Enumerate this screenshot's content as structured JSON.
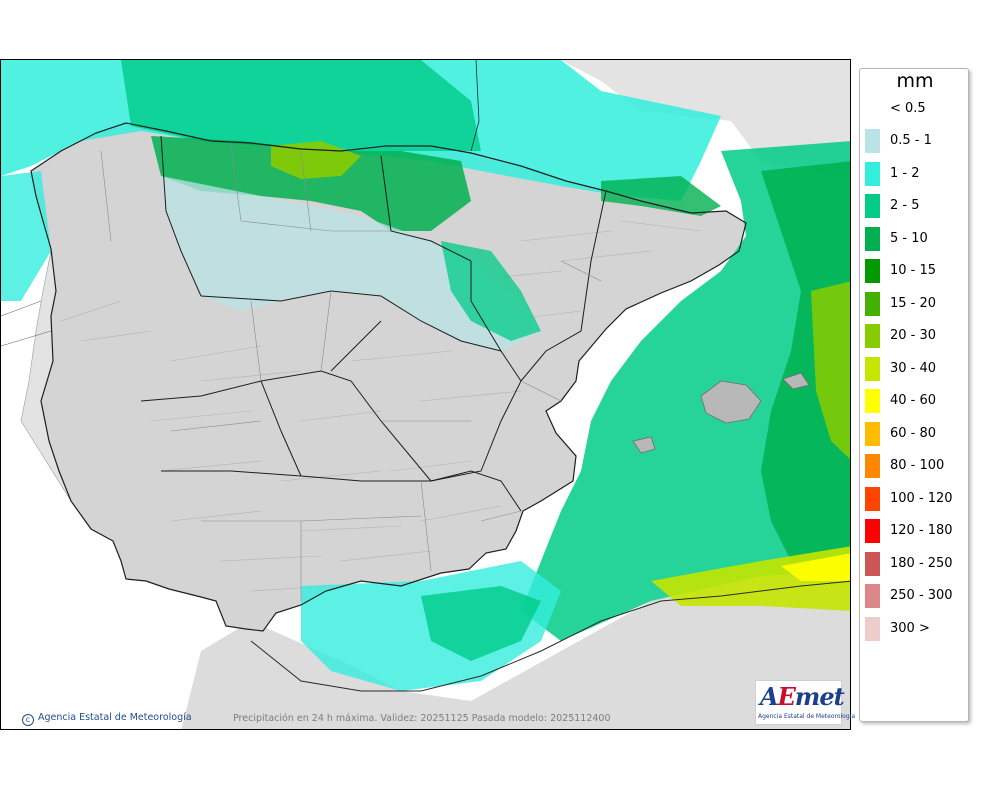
{
  "map": {
    "caption": "Precipitación en 24 h máxima. Validez: 20251125 Pasada modelo: 2025112400",
    "credit": "Agencia Estatal de Meteorología",
    "logo": {
      "wordmark_a": "A",
      "wordmark_e": "E",
      "wordmark_rest": "met",
      "subtitle": "Agencia Estatal de Meteorología"
    }
  },
  "legend": {
    "unit": "mm",
    "below_min": "< 0.5",
    "items": [
      {
        "label": "0.5 - 1",
        "color": "#b9e3e6"
      },
      {
        "label": "1 - 2",
        "color": "#33eedd"
      },
      {
        "label": "2 - 5",
        "color": "#00cc88"
      },
      {
        "label": "5 - 10",
        "color": "#00b050"
      },
      {
        "label": "10 - 15",
        "color": "#009900"
      },
      {
        "label": "15 - 20",
        "color": "#44b000"
      },
      {
        "label": "20 - 30",
        "color": "#88cc00"
      },
      {
        "label": "30 - 40",
        "color": "#c4e600"
      },
      {
        "label": "40 - 60",
        "color": "#ffff00"
      },
      {
        "label": "60 - 80",
        "color": "#ffbb00"
      },
      {
        "label": "80 - 100",
        "color": "#ff8800"
      },
      {
        "label": "100 - 120",
        "color": "#ff4400"
      },
      {
        "label": "120 - 180",
        "color": "#ff0000"
      },
      {
        "label": "180 - 250",
        "color": "#cc5555"
      },
      {
        "label": "250 - 300",
        "color": "#dd8888"
      },
      {
        "label": "300 >",
        "color": "#eecccc"
      }
    ]
  }
}
